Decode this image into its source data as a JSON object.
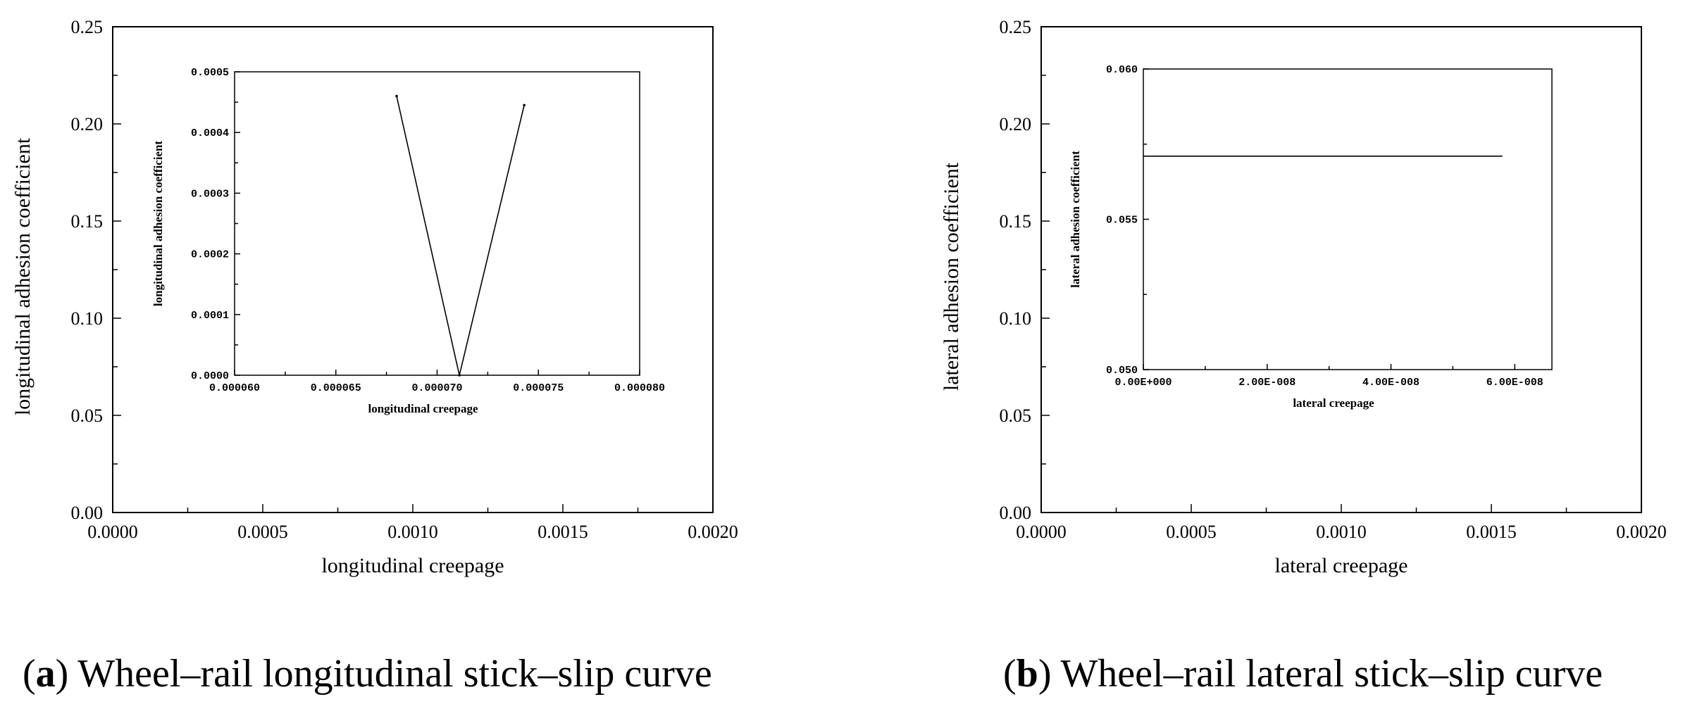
{
  "chart_data": [
    {
      "type": "line",
      "caption_letter": "a",
      "caption_text": ") Wheel–rail longitudinal stick–slip curve",
      "xlabel": "longitudinal creepage",
      "ylabel": "longitudinal adhesion coefficient",
      "xlim": [
        0,
        0.002
      ],
      "ylim": [
        0,
        0.25
      ],
      "xticks": [
        "0.0000",
        "0.0005",
        "0.0010",
        "0.0015",
        "0.0020"
      ],
      "yticks": [
        "0.00",
        "0.05",
        "0.10",
        "0.15",
        "0.20",
        "0.25"
      ],
      "grid": false,
      "inset": {
        "xlabel": "longitudinal creepage",
        "ylabel": "longitudinal adhesion coefficient",
        "xlim": [
          6e-05,
          8e-05
        ],
        "ylim": [
          0,
          0.0005
        ],
        "xticks": [
          "0.000060",
          "0.000065",
          "0.000070",
          "0.000075",
          "0.000080"
        ],
        "yticks": [
          "0.0000",
          "0.0001",
          "0.0002",
          "0.0003",
          "0.0004",
          "0.0005"
        ],
        "series": [
          {
            "x": [
              6.8e-05,
              7.11e-05,
              7.43e-05
            ],
            "y": [
              0.00046,
              0.0,
              0.000445
            ]
          }
        ]
      }
    },
    {
      "type": "line",
      "caption_letter": "b",
      "caption_text": ") Wheel–rail lateral stick–slip curve",
      "xlabel": "lateral creepage",
      "ylabel": "lateral adhesion coefficient",
      "xlim": [
        0,
        0.002
      ],
      "ylim": [
        0,
        0.25
      ],
      "xticks": [
        "0.0000",
        "0.0005",
        "0.0010",
        "0.0015",
        "0.0020"
      ],
      "yticks": [
        "0.00",
        "0.05",
        "0.10",
        "0.15",
        "0.20",
        "0.25"
      ],
      "grid": false,
      "inset": {
        "xlabel": "lateral creepage",
        "ylabel": "lateral adhesion coefficient",
        "xlim": [
          0,
          6.6e-08
        ],
        "ylim": [
          0.05,
          0.06
        ],
        "xticks": [
          "0.00E+000",
          "2.00E-008",
          "4.00E-008",
          "6.00E-008"
        ],
        "yticks": [
          "0.050",
          "0.055",
          "0.060"
        ],
        "series": [
          {
            "x": [
              0,
              5.8e-08
            ],
            "y": [
              0.0571,
              0.0571
            ]
          }
        ]
      }
    }
  ]
}
